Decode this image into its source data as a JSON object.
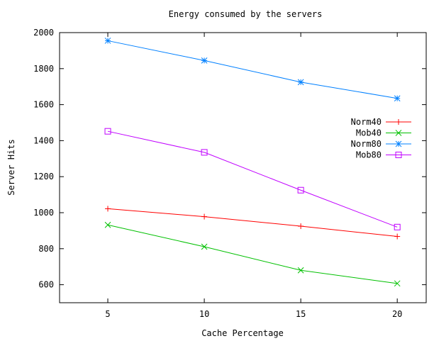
{
  "chart_data": {
    "type": "line",
    "title": "Energy consumed by the servers",
    "xlabel": "Cache Percentage",
    "ylabel": "Server Hits",
    "x": [
      5,
      10,
      15,
      20
    ],
    "xlim": [
      2.5,
      21.5
    ],
    "ylim": [
      500,
      2000
    ],
    "xticks": [
      5,
      10,
      15,
      20
    ],
    "yticks": [
      600,
      800,
      1000,
      1200,
      1400,
      1600,
      1800,
      2000
    ],
    "grid": false,
    "legend_position": "right",
    "series": [
      {
        "name": "Norm40",
        "color": "#ff0000",
        "marker": "plus",
        "values": [
          1022,
          978,
          925,
          868
        ]
      },
      {
        "name": "Mob40",
        "color": "#00c000",
        "marker": "cross",
        "values": [
          932,
          811,
          680,
          607
        ]
      },
      {
        "name": "Norm80",
        "color": "#0080ff",
        "marker": "star",
        "values": [
          1955,
          1845,
          1725,
          1635
        ]
      },
      {
        "name": "Mob80",
        "color": "#c000ff",
        "marker": "square",
        "values": [
          1452,
          1335,
          1125,
          920
        ]
      }
    ]
  }
}
